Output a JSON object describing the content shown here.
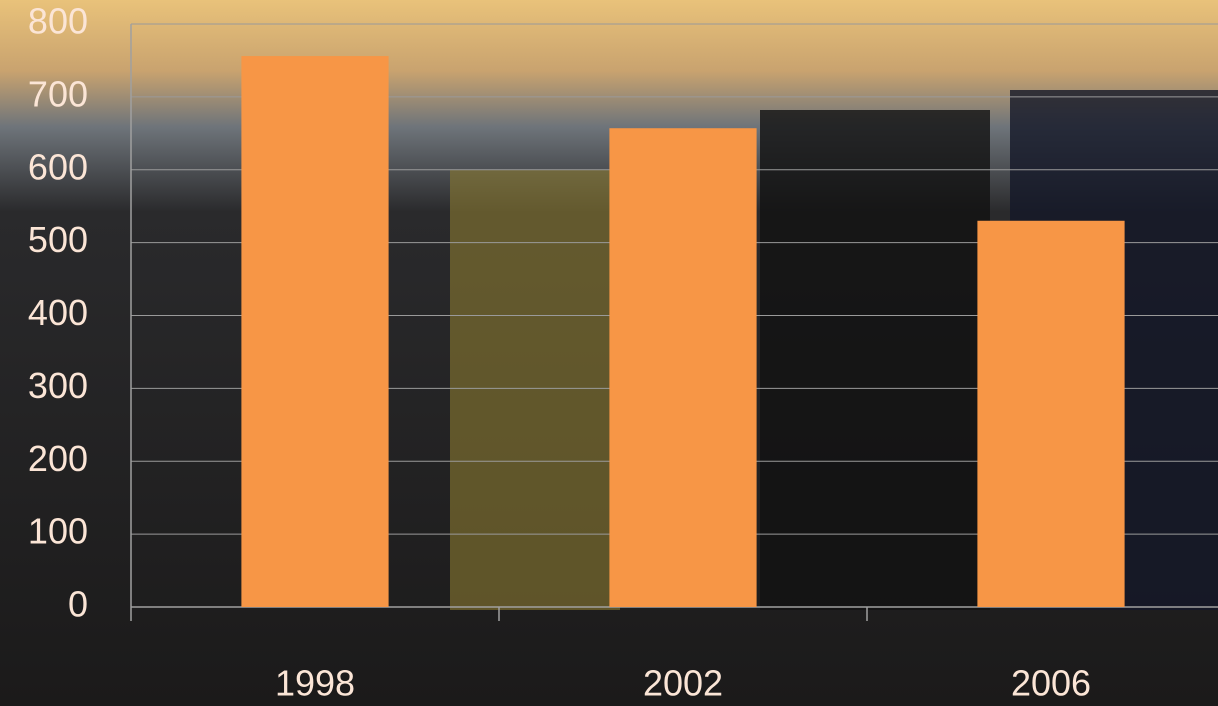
{
  "chart_data": {
    "type": "bar",
    "categories": [
      "1998",
      "2002",
      "2006"
    ],
    "values": [
      756,
      657,
      530
    ],
    "color": "#f79646",
    "ylim": [
      0,
      800
    ],
    "yticks": [
      0,
      100,
      200,
      300,
      400,
      500,
      600,
      700,
      800
    ],
    "grid": true
  }
}
